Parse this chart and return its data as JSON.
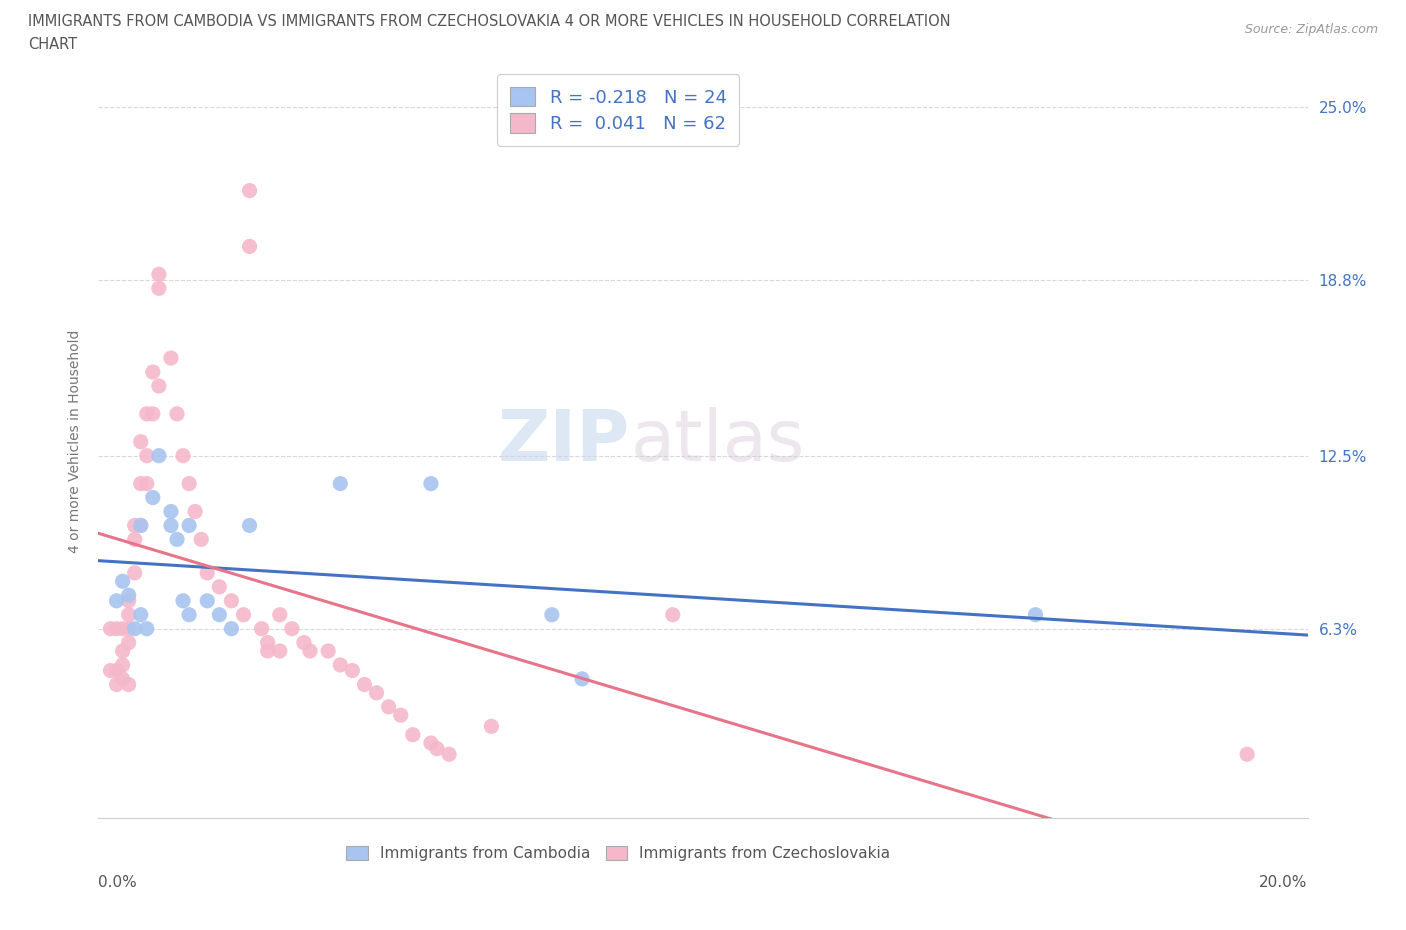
{
  "title_line1": "IMMIGRANTS FROM CAMBODIA VS IMMIGRANTS FROM CZECHOSLOVAKIA 4 OR MORE VEHICLES IN HOUSEHOLD CORRELATION",
  "title_line2": "CHART",
  "source": "Source: ZipAtlas.com",
  "ylabel": "4 or more Vehicles in Household",
  "xlim": [
    0.0,
    0.2
  ],
  "ylim": [
    -0.005,
    0.265
  ],
  "xticks": [
    0.0,
    0.05,
    0.1,
    0.15,
    0.2
  ],
  "xtick_labels_ends": [
    "0.0%",
    "20.0%"
  ],
  "ytick_labels": [
    "6.3%",
    "12.5%",
    "18.8%",
    "25.0%"
  ],
  "yticks": [
    0.063,
    0.125,
    0.188,
    0.25
  ],
  "watermark_zip": "ZIP",
  "watermark_atlas": "atlas",
  "cambodia_color": "#a8c4f0",
  "czechoslovakia_color": "#f5b8cb",
  "cambodia_line_color": "#4472c4",
  "czechoslovakia_line_color": "#e8748a",
  "legend_label1": "R = -0.218   N = 24",
  "legend_label2": "R =  0.041   N = 62",
  "legend_color_text": "#4472c4",
  "cambodia_scatter": [
    [
      0.003,
      0.073
    ],
    [
      0.004,
      0.08
    ],
    [
      0.005,
      0.075
    ],
    [
      0.006,
      0.063
    ],
    [
      0.007,
      0.068
    ],
    [
      0.007,
      0.1
    ],
    [
      0.008,
      0.063
    ],
    [
      0.009,
      0.11
    ],
    [
      0.01,
      0.125
    ],
    [
      0.012,
      0.105
    ],
    [
      0.012,
      0.1
    ],
    [
      0.013,
      0.095
    ],
    [
      0.014,
      0.073
    ],
    [
      0.015,
      0.068
    ],
    [
      0.015,
      0.1
    ],
    [
      0.018,
      0.073
    ],
    [
      0.02,
      0.068
    ],
    [
      0.022,
      0.063
    ],
    [
      0.025,
      0.1
    ],
    [
      0.04,
      0.115
    ],
    [
      0.055,
      0.115
    ],
    [
      0.075,
      0.068
    ],
    [
      0.08,
      0.045
    ],
    [
      0.155,
      0.068
    ]
  ],
  "czechoslovakia_scatter": [
    [
      0.002,
      0.063
    ],
    [
      0.002,
      0.048
    ],
    [
      0.003,
      0.063
    ],
    [
      0.003,
      0.048
    ],
    [
      0.003,
      0.043
    ],
    [
      0.004,
      0.063
    ],
    [
      0.004,
      0.055
    ],
    [
      0.004,
      0.05
    ],
    [
      0.004,
      0.045
    ],
    [
      0.005,
      0.073
    ],
    [
      0.005,
      0.068
    ],
    [
      0.005,
      0.063
    ],
    [
      0.005,
      0.058
    ],
    [
      0.005,
      0.043
    ],
    [
      0.006,
      0.1
    ],
    [
      0.006,
      0.095
    ],
    [
      0.006,
      0.083
    ],
    [
      0.007,
      0.13
    ],
    [
      0.007,
      0.115
    ],
    [
      0.007,
      0.1
    ],
    [
      0.008,
      0.14
    ],
    [
      0.008,
      0.125
    ],
    [
      0.008,
      0.115
    ],
    [
      0.009,
      0.155
    ],
    [
      0.009,
      0.14
    ],
    [
      0.01,
      0.185
    ],
    [
      0.01,
      0.19
    ],
    [
      0.01,
      0.15
    ],
    [
      0.012,
      0.16
    ],
    [
      0.013,
      0.14
    ],
    [
      0.014,
      0.125
    ],
    [
      0.015,
      0.115
    ],
    [
      0.016,
      0.105
    ],
    [
      0.017,
      0.095
    ],
    [
      0.018,
      0.083
    ],
    [
      0.02,
      0.078
    ],
    [
      0.022,
      0.073
    ],
    [
      0.024,
      0.068
    ],
    [
      0.025,
      0.22
    ],
    [
      0.025,
      0.2
    ],
    [
      0.027,
      0.063
    ],
    [
      0.028,
      0.058
    ],
    [
      0.028,
      0.055
    ],
    [
      0.03,
      0.068
    ],
    [
      0.03,
      0.055
    ],
    [
      0.032,
      0.063
    ],
    [
      0.034,
      0.058
    ],
    [
      0.035,
      0.055
    ],
    [
      0.038,
      0.055
    ],
    [
      0.04,
      0.05
    ],
    [
      0.042,
      0.048
    ],
    [
      0.044,
      0.043
    ],
    [
      0.046,
      0.04
    ],
    [
      0.048,
      0.035
    ],
    [
      0.05,
      0.032
    ],
    [
      0.052,
      0.025
    ],
    [
      0.055,
      0.022
    ],
    [
      0.056,
      0.02
    ],
    [
      0.058,
      0.018
    ],
    [
      0.065,
      0.028
    ],
    [
      0.19,
      0.018
    ],
    [
      0.095,
      0.068
    ]
  ],
  "background_color": "#ffffff",
  "grid_color": "#d8d8d8"
}
